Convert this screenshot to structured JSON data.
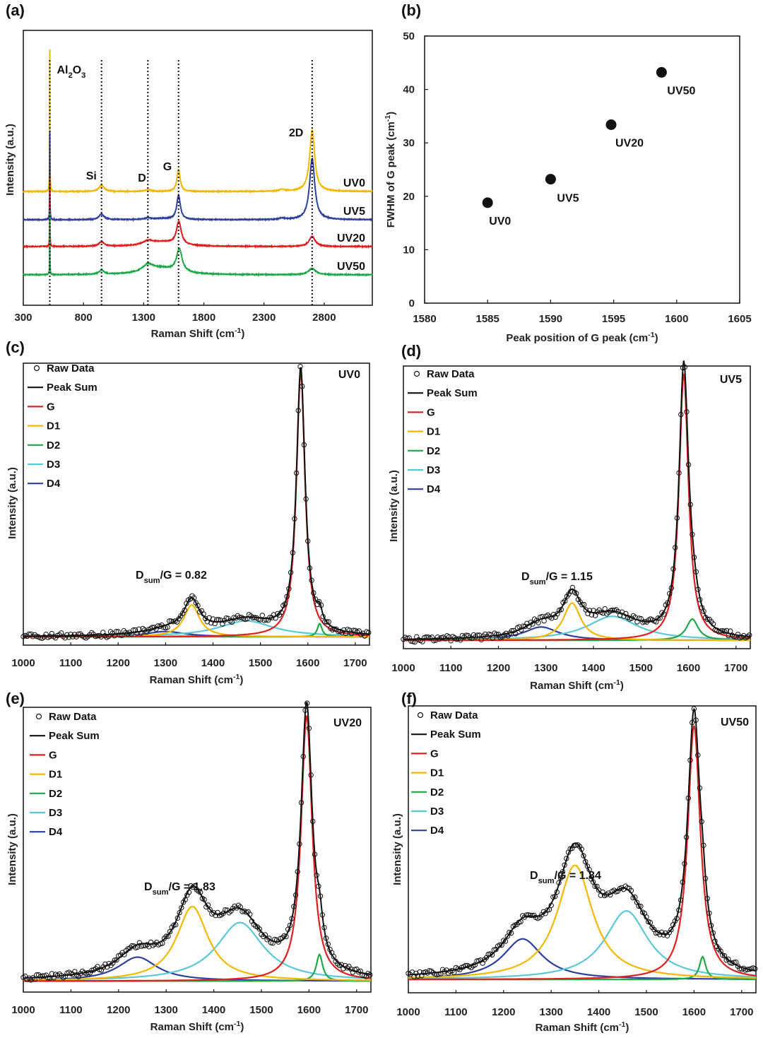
{
  "colors": {
    "UV0": "#f5b800",
    "UV5": "#2e3f9e",
    "UV20": "#e02020",
    "UV50": "#1fa84a",
    "G": "#e02020",
    "D1": "#f5b800",
    "D2": "#1fa84a",
    "D3": "#5bc8d8",
    "D4": "#2e3f9e",
    "sum": "#111111",
    "raw": "#111111"
  },
  "chart_data": [
    {
      "id": "a",
      "panel_label": "(a)",
      "type": "line",
      "xlabel": "Raman Shift (cm-1)",
      "ylabel": "Intensity (a.u.)",
      "xlim": [
        300,
        3200
      ],
      "xticks": [
        300,
        800,
        1300,
        1800,
        2300,
        2800
      ],
      "peak_lines": [
        520,
        950,
        1335,
        1590,
        2700
      ],
      "annotations": [
        {
          "text": "Al2O3",
          "x": 520
        },
        {
          "text": "Si",
          "x": 950
        },
        {
          "text": "D",
          "x": 1335
        },
        {
          "text": "G",
          "x": 1590
        },
        {
          "text": "2D",
          "x": 2700
        }
      ],
      "series": [
        {
          "name": "UV0",
          "offset": 3.0,
          "peaks": [
            [
              520,
              0.9,
              5.2
            ],
            [
              520,
              5,
              0.4
            ],
            [
              950,
              25,
              0.25
            ],
            [
              1335,
              30,
              0.06
            ],
            [
              1590,
              16,
              0.85
            ],
            [
              2450,
              30,
              0.07
            ],
            [
              2700,
              25,
              2.4
            ]
          ]
        },
        {
          "name": "UV5",
          "offset": 2.0,
          "peaks": [
            [
              520,
              0.9,
              3.2
            ],
            [
              520,
              5,
              0.3
            ],
            [
              950,
              25,
              0.22
            ],
            [
              1335,
              35,
              0.05
            ],
            [
              1450,
              120,
              0.04
            ],
            [
              1590,
              18,
              0.95
            ],
            [
              2450,
              30,
              0.05
            ],
            [
              2700,
              26,
              2.4
            ]
          ]
        },
        {
          "name": "UV20",
          "offset": 1.0,
          "peaks": [
            [
              520,
              0.9,
              2.5
            ],
            [
              520,
              5,
              0.25
            ],
            [
              950,
              25,
              0.18
            ],
            [
              1335,
              45,
              0.14
            ],
            [
              1450,
              150,
              0.18
            ],
            [
              1592,
              24,
              0.9
            ],
            [
              2700,
              30,
              0.4
            ]
          ]
        },
        {
          "name": "UV50",
          "offset": 0.0,
          "peaks": [
            [
              520,
              0.9,
              2.3
            ],
            [
              520,
              5,
              0.2
            ],
            [
              950,
              25,
              0.16
            ],
            [
              1335,
              55,
              0.28
            ],
            [
              1450,
              160,
              0.24
            ],
            [
              1596,
              28,
              0.9
            ],
            [
              2700,
              35,
              0.25
            ]
          ]
        }
      ]
    },
    {
      "id": "b",
      "panel_label": "(b)",
      "type": "scatter",
      "xlabel": "Peak position of G peak (cm-1)",
      "ylabel": "FWHM of G peak (cm-1)",
      "xlim": [
        1580,
        1605
      ],
      "ylim": [
        0,
        50
      ],
      "xticks": [
        1580,
        1585,
        1590,
        1595,
        1600,
        1605
      ],
      "yticks": [
        0,
        10,
        20,
        30,
        40,
        50
      ],
      "points": [
        {
          "label": "UV0",
          "x": 1585.0,
          "y": 18.8
        },
        {
          "label": "UV5",
          "x": 1590.0,
          "y": 23.2
        },
        {
          "label": "UV20",
          "x": 1594.8,
          "y": 33.4
        },
        {
          "label": "UV50",
          "x": 1598.8,
          "y": 43.2
        }
      ]
    },
    {
      "id": "c",
      "panel_label": "(c)",
      "type": "line",
      "sample": "UV0",
      "ratio_text": "Dsum/G = 0.82",
      "xlabel": "Raman Shift (cm-1)",
      "ylabel": "Intensity (a.u.)",
      "xlim": [
        1000,
        1730
      ],
      "xticks": [
        1000,
        1100,
        1200,
        1300,
        1400,
        1500,
        1600,
        1700
      ],
      "ylim": [
        -0.01,
        1.05
      ],
      "baseline": 0.0,
      "legend": [
        "Raw Data",
        "Peak Sum",
        "G",
        "D1",
        "D2",
        "D3",
        "D4"
      ],
      "components": [
        {
          "name": "G",
          "center": 1585,
          "width": 11,
          "height": 1.0
        },
        {
          "name": "D1",
          "center": 1355,
          "width": 20,
          "height": 0.12
        },
        {
          "name": "D2",
          "center": 1625,
          "width": 6,
          "height": 0.05
        },
        {
          "name": "D3",
          "center": 1470,
          "width": 70,
          "height": 0.06
        },
        {
          "name": "D4",
          "center": 1300,
          "width": 50,
          "height": 0.02
        }
      ]
    },
    {
      "id": "d",
      "panel_label": "(d)",
      "type": "line",
      "sample": "UV5",
      "ratio_text": "Dsum/G = 1.15",
      "xlabel": "Raman Shift (cm-1)",
      "ylabel": "Intensity (a.u.)",
      "xlim": [
        1000,
        1730
      ],
      "xticks": [
        1000,
        1100,
        1200,
        1300,
        1400,
        1500,
        1600,
        1700
      ],
      "ylim": [
        -0.01,
        1.05
      ],
      "baseline": 0.0,
      "legend": [
        "Raw Data",
        "Peak Sum",
        "G",
        "D1",
        "D2",
        "D3",
        "D4"
      ],
      "components": [
        {
          "name": "G",
          "center": 1590,
          "width": 12,
          "height": 1.0
        },
        {
          "name": "D1",
          "center": 1355,
          "width": 22,
          "height": 0.14
        },
        {
          "name": "D2",
          "center": 1608,
          "width": 15,
          "height": 0.08
        },
        {
          "name": "D3",
          "center": 1440,
          "width": 65,
          "height": 0.09
        },
        {
          "name": "D4",
          "center": 1290,
          "width": 45,
          "height": 0.05
        }
      ]
    },
    {
      "id": "e",
      "panel_label": "(e)",
      "type": "line",
      "sample": "UV20",
      "ratio_text": "Dsum/G = 1.83",
      "xlabel": "Raman Shift (cm-1)",
      "ylabel": "Intensity (a.u.)",
      "xlim": [
        1000,
        1730
      ],
      "xticks": [
        1000,
        1100,
        1200,
        1300,
        1400,
        1500,
        1600,
        1700
      ],
      "ylim": [
        -0.02,
        1.05
      ],
      "baseline": 0.0,
      "legend": [
        "Raw Data",
        "Peak Sum",
        "G",
        "D1",
        "D2",
        "D3",
        "D4"
      ],
      "components": [
        {
          "name": "G",
          "center": 1595,
          "width": 14,
          "height": 1.0
        },
        {
          "name": "D1",
          "center": 1355,
          "width": 40,
          "height": 0.28
        },
        {
          "name": "D2",
          "center": 1622,
          "width": 8,
          "height": 0.1
        },
        {
          "name": "D3",
          "center": 1455,
          "width": 60,
          "height": 0.22
        },
        {
          "name": "D4",
          "center": 1240,
          "width": 50,
          "height": 0.09
        }
      ]
    },
    {
      "id": "f",
      "panel_label": "(f)",
      "type": "line",
      "sample": "UV50",
      "ratio_text": "Dsum/G = 1.84",
      "xlabel": "Raman Shift (cm-1)",
      "ylabel": "Intensity (a.u.)",
      "xlim": [
        1000,
        1730
      ],
      "xticks": [
        1000,
        1100,
        1200,
        1300,
        1400,
        1500,
        1600,
        1700
      ],
      "ylim": [
        -0.08,
        1.05
      ],
      "baseline": -0.05,
      "legend": [
        "Raw Data",
        "Peak Sum",
        "G",
        "D1",
        "D2",
        "D3",
        "D4"
      ],
      "components": [
        {
          "name": "G",
          "center": 1600,
          "width": 16,
          "height": 1.0
        },
        {
          "name": "D1",
          "center": 1350,
          "width": 45,
          "height": 0.45
        },
        {
          "name": "D2",
          "center": 1618,
          "width": 8,
          "height": 0.09
        },
        {
          "name": "D3",
          "center": 1458,
          "width": 55,
          "height": 0.27
        },
        {
          "name": "D4",
          "center": 1240,
          "width": 50,
          "height": 0.16
        }
      ]
    }
  ]
}
